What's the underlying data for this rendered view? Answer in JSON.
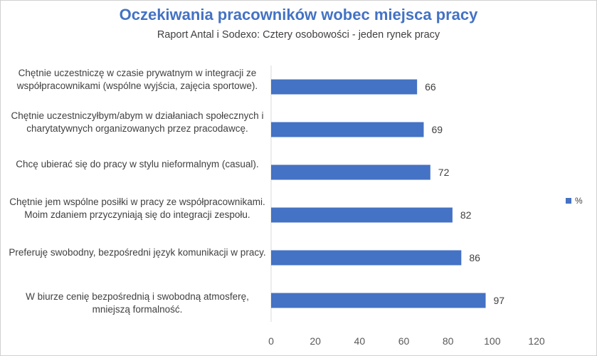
{
  "chart_data": {
    "type": "bar",
    "orientation": "horizontal",
    "title": "Oczekiwania pracowników wobec miejsca pracy",
    "subtitle": "Raport Antal i Sodexo: Cztery osobowości - jeden rynek pracy",
    "categories": [
      "Chętnie uczestniczę w czasie prywatnym w integracji ze współpracownikami (wspólne wyjścia, zajęcia sportowe).",
      "Chętnie uczestniczyłbym/abym w działaniach społecznych i charytatywnych organizowanych przez pracodawcę.",
      "Chcę ubierać się do pracy w stylu nieformalnym (casual).",
      "Chętnie jem wspólne posiłki w pracy ze współpracownikami. Moim zdaniem przyczyniają się do integracji zespołu.",
      "Preferuję swobodny, bezpośredni język komunikacji w pracy.",
      "W biurze cenię bezpośrednią i swobodną atmosferę, mniejszą formalność."
    ],
    "series": [
      {
        "name": "%",
        "values": [
          66,
          69,
          72,
          82,
          86,
          97
        ],
        "color": "#4472c4"
      }
    ],
    "xlim": [
      0,
      120
    ],
    "xticks": [
      0,
      20,
      40,
      60,
      80,
      100,
      120
    ],
    "grid": false,
    "legend_position": "right"
  }
}
